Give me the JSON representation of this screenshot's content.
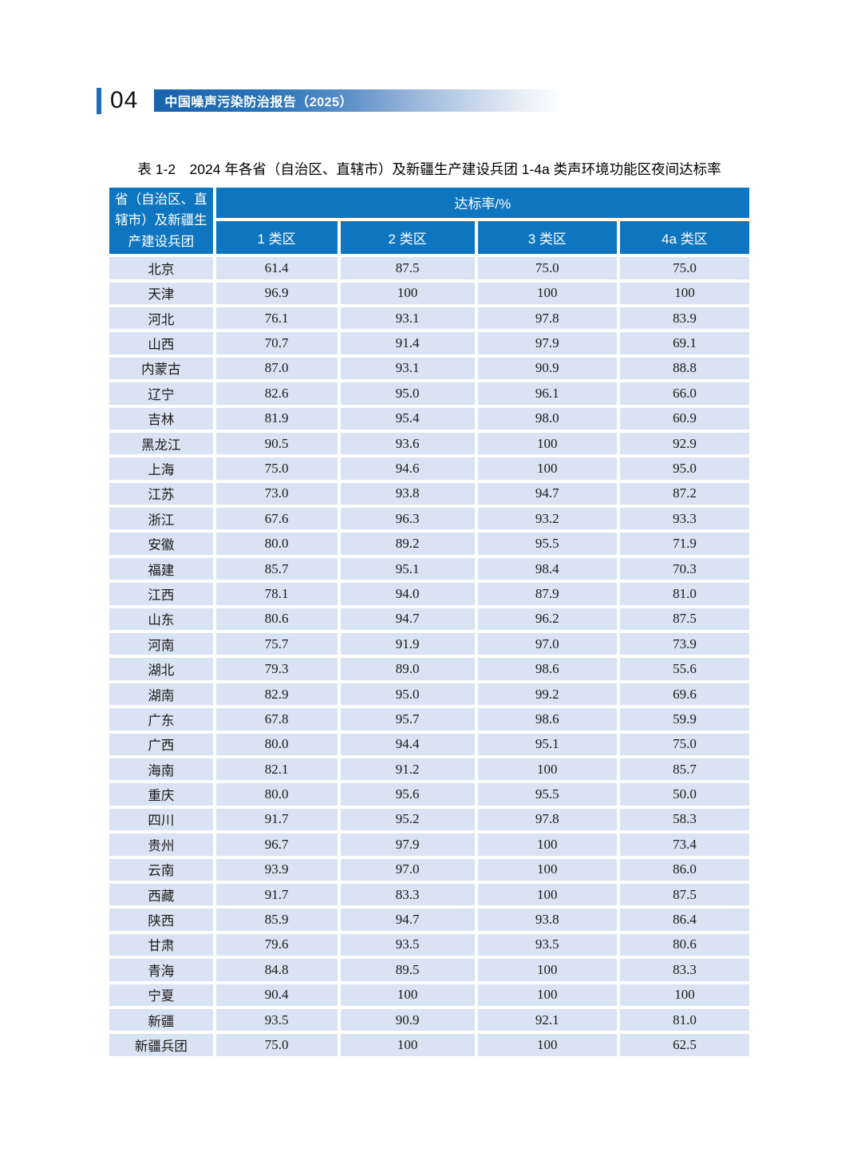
{
  "page": {
    "page_number": "04",
    "banner_title": "中国噪声污染防治报告（2025）"
  },
  "table": {
    "caption": "表 1-2　2024 年各省（自治区、直辖市）及新疆生产建设兵团 1-4a 类声环境功能区夜间达标率",
    "header": {
      "region_column": "省（自治区、直辖市）及新疆生产建设兵团",
      "rate_group": "达标率/%",
      "zone_columns": [
        "1 类区",
        "2 类区",
        "3 类区",
        "4a 类区"
      ]
    },
    "rows": [
      {
        "region": "北京",
        "values": [
          "61.4",
          "87.5",
          "75.0",
          "75.0"
        ]
      },
      {
        "region": "天津",
        "values": [
          "96.9",
          "100",
          "100",
          "100"
        ]
      },
      {
        "region": "河北",
        "values": [
          "76.1",
          "93.1",
          "97.8",
          "83.9"
        ]
      },
      {
        "region": "山西",
        "values": [
          "70.7",
          "91.4",
          "97.9",
          "69.1"
        ]
      },
      {
        "region": "内蒙古",
        "values": [
          "87.0",
          "93.1",
          "90.9",
          "88.8"
        ]
      },
      {
        "region": "辽宁",
        "values": [
          "82.6",
          "95.0",
          "96.1",
          "66.0"
        ]
      },
      {
        "region": "吉林",
        "values": [
          "81.9",
          "95.4",
          "98.0",
          "60.9"
        ]
      },
      {
        "region": "黑龙江",
        "values": [
          "90.5",
          "93.6",
          "100",
          "92.9"
        ]
      },
      {
        "region": "上海",
        "values": [
          "75.0",
          "94.6",
          "100",
          "95.0"
        ]
      },
      {
        "region": "江苏",
        "values": [
          "73.0",
          "93.8",
          "94.7",
          "87.2"
        ]
      },
      {
        "region": "浙江",
        "values": [
          "67.6",
          "96.3",
          "93.2",
          "93.3"
        ]
      },
      {
        "region": "安徽",
        "values": [
          "80.0",
          "89.2",
          "95.5",
          "71.9"
        ]
      },
      {
        "region": "福建",
        "values": [
          "85.7",
          "95.1",
          "98.4",
          "70.3"
        ]
      },
      {
        "region": "江西",
        "values": [
          "78.1",
          "94.0",
          "87.9",
          "81.0"
        ]
      },
      {
        "region": "山东",
        "values": [
          "80.6",
          "94.7",
          "96.2",
          "87.5"
        ]
      },
      {
        "region": "河南",
        "values": [
          "75.7",
          "91.9",
          "97.0",
          "73.9"
        ]
      },
      {
        "region": "湖北",
        "values": [
          "79.3",
          "89.0",
          "98.6",
          "55.6"
        ]
      },
      {
        "region": "湖南",
        "values": [
          "82.9",
          "95.0",
          "99.2",
          "69.6"
        ]
      },
      {
        "region": "广东",
        "values": [
          "67.8",
          "95.7",
          "98.6",
          "59.9"
        ]
      },
      {
        "region": "广西",
        "values": [
          "80.0",
          "94.4",
          "95.1",
          "75.0"
        ]
      },
      {
        "region": "海南",
        "values": [
          "82.1",
          "91.2",
          "100",
          "85.7"
        ]
      },
      {
        "region": "重庆",
        "values": [
          "80.0",
          "95.6",
          "95.5",
          "50.0"
        ]
      },
      {
        "region": "四川",
        "values": [
          "91.7",
          "95.2",
          "97.8",
          "58.3"
        ]
      },
      {
        "region": "贵州",
        "values": [
          "96.7",
          "97.9",
          "100",
          "73.4"
        ]
      },
      {
        "region": "云南",
        "values": [
          "93.9",
          "97.0",
          "100",
          "86.0"
        ]
      },
      {
        "region": "西藏",
        "values": [
          "91.7",
          "83.3",
          "100",
          "87.5"
        ]
      },
      {
        "region": "陕西",
        "values": [
          "85.9",
          "94.7",
          "93.8",
          "86.4"
        ]
      },
      {
        "region": "甘肃",
        "values": [
          "79.6",
          "93.5",
          "93.5",
          "80.6"
        ]
      },
      {
        "region": "青海",
        "values": [
          "84.8",
          "89.5",
          "100",
          "83.3"
        ]
      },
      {
        "region": "宁夏",
        "values": [
          "90.4",
          "100",
          "100",
          "100"
        ]
      },
      {
        "region": "新疆",
        "values": [
          "93.5",
          "90.9",
          "92.1",
          "81.0"
        ]
      },
      {
        "region": "新疆兵团",
        "values": [
          "75.0",
          "100",
          "100",
          "62.5"
        ]
      }
    ]
  },
  "colors": {
    "header_blue": "#0e76c0",
    "row_background": "#d9e3f3",
    "banner_blue": "#1a63ad",
    "accent_bar_blue": "#1e6cb5"
  }
}
